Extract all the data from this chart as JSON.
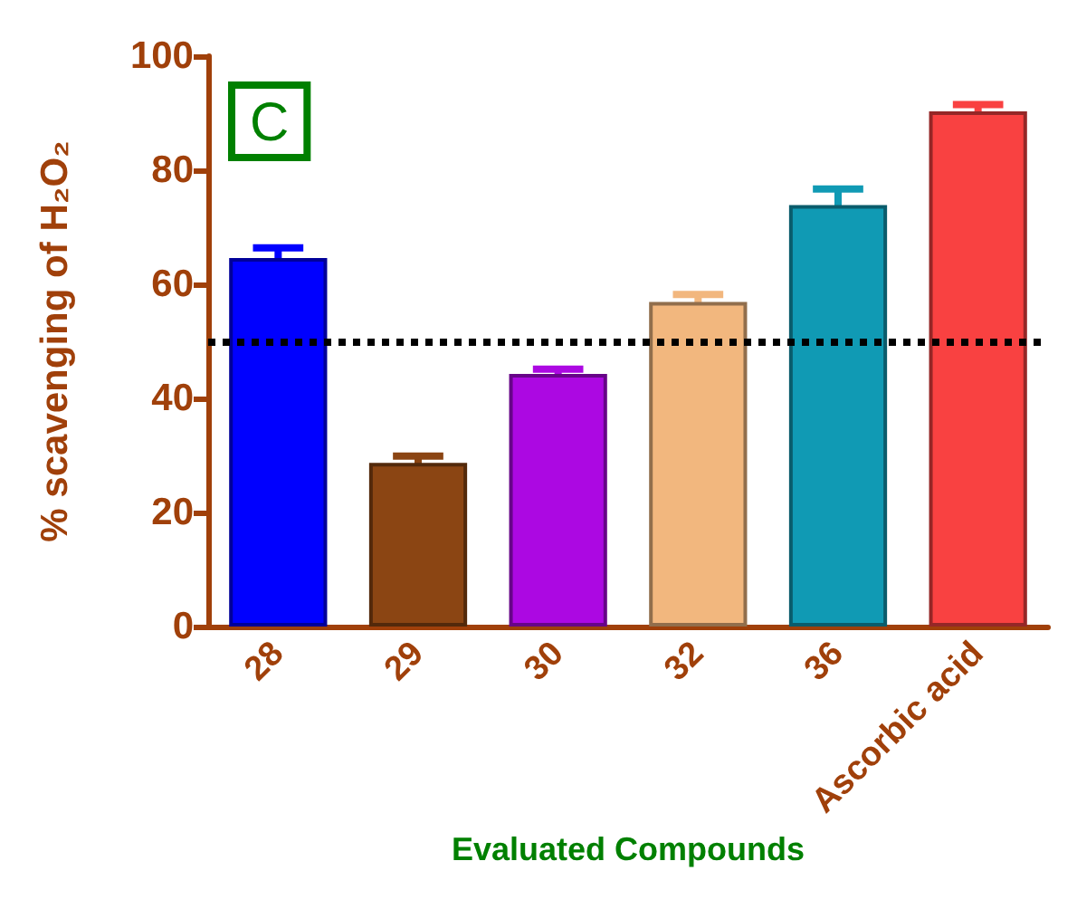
{
  "chart_data": {
    "type": "bar",
    "xlabel": "Evaluated Compounds",
    "ylabel": "% scavenging of H₂O₂",
    "categories": [
      "28",
      "29",
      "30",
      "32",
      "36",
      "Ascorbic acid"
    ],
    "values": [
      64.6,
      28.7,
      44.3,
      56.9,
      73.9,
      90.3
    ],
    "errors": [
      1.8,
      1.2,
      0.8,
      1.3,
      2.8,
      1.2
    ],
    "colors": [
      "#0000ff",
      "#8b4513",
      "#ac08e2",
      "#f2b77e",
      "#109ab4",
      "#f94141"
    ],
    "ylim": [
      0,
      100
    ],
    "yticks": [
      0,
      20,
      40,
      60,
      80,
      100
    ],
    "grid": false,
    "ref_lines": [
      {
        "axis": "y",
        "value": 50,
        "color": "#000000",
        "line_style": "dotted"
      }
    ],
    "annotations": [
      "C"
    ]
  }
}
